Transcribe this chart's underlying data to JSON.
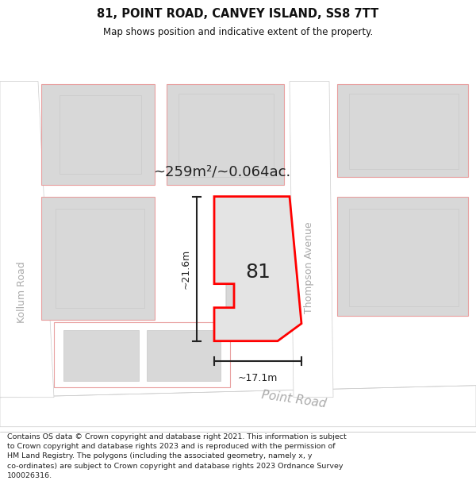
{
  "title": "81, POINT ROAD, CANVEY ISLAND, SS8 7TT",
  "subtitle": "Map shows position and indicative extent of the property.",
  "footer_lines": [
    "Contains OS data © Crown copyright and database right 2021. This information is subject to Crown copyright and database rights 2023 and is reproduced with the permission of",
    "HM Land Registry. The polygons (including the associated geometry, namely x, y co-ordinates) are subject to Crown copyright and database rights 2023 Ordnance Survey",
    "100026316."
  ],
  "area_text": "~259m²/~0.064ac.",
  "label_81": "81",
  "dim_height": "~21.6m",
  "dim_width": "~17.1m",
  "street_thompson": "Thompson Avenue",
  "street_point": "Point Road",
  "street_kollum": "Kollum Road",
  "bg_color": "#eeeeee",
  "road_color": "#ffffff",
  "building_fill": "#d8d8d8",
  "building_outline": "#e8a0a0",
  "plot_fill": "#e4e4e4",
  "plot_outline": "#ff0000",
  "inner_fill": "#d8d8d8",
  "inner_outline": "#c8c8c8",
  "dim_color": "#222222",
  "text_color": "#222222",
  "street_color": "#aaaaaa",
  "title_color": "#111111",
  "lot_outline_color": "#e8a0a0"
}
